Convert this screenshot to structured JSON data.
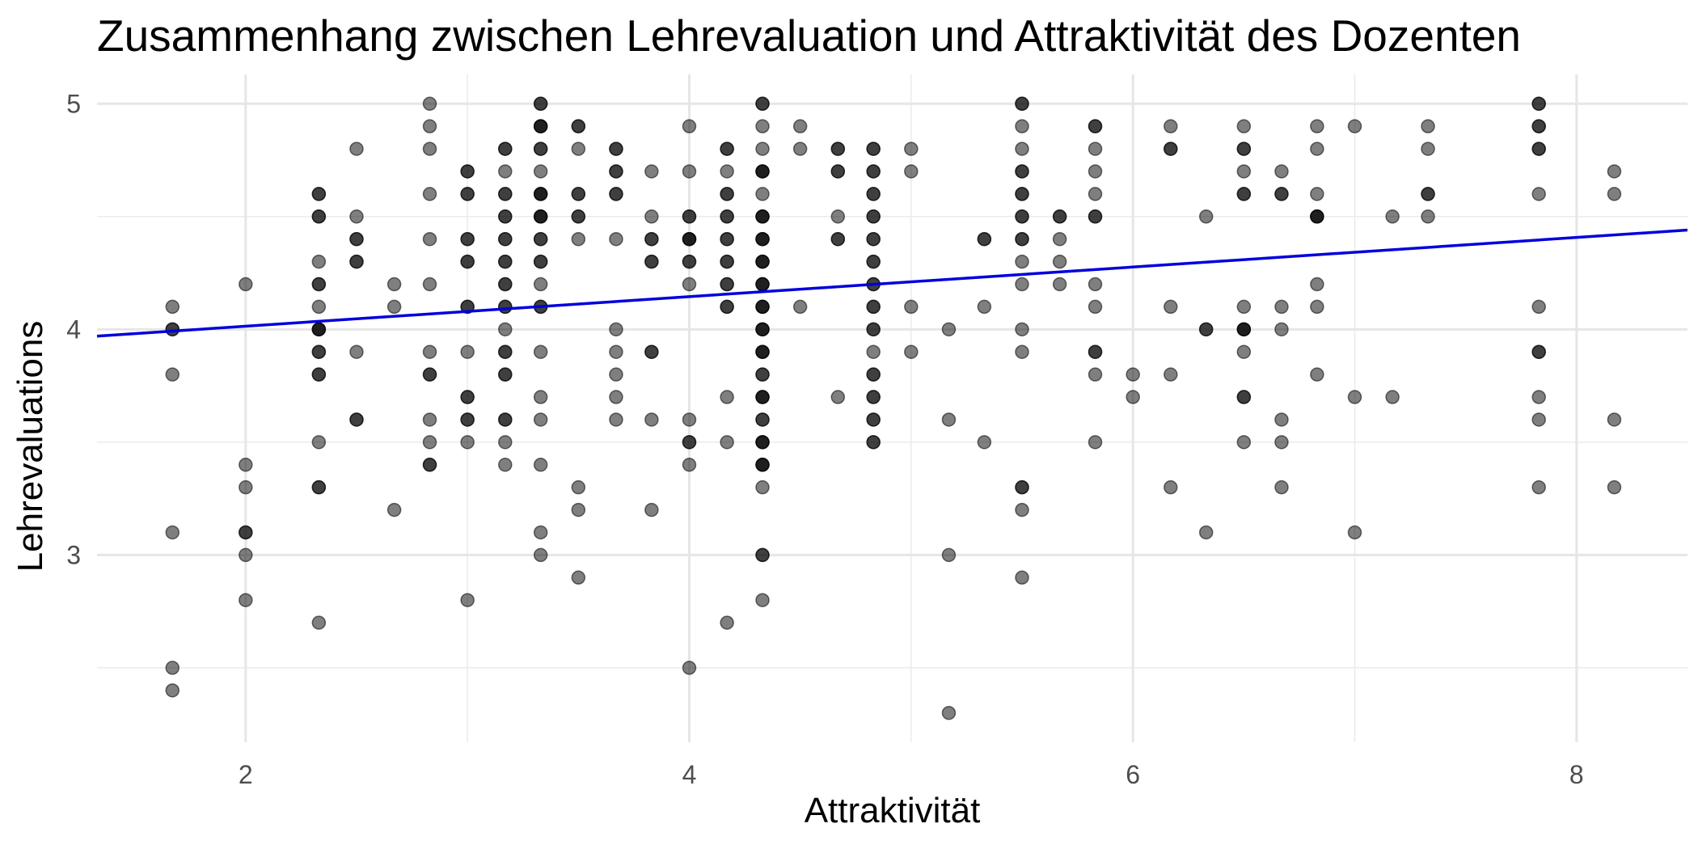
{
  "chart_data": {
    "type": "scatter",
    "title": "Zusammenhang zwischen Lehrevaluation und Attraktivität des Dozenten",
    "xlabel": "Attraktivität",
    "ylabel": "Lehrevaluations",
    "xlim": [
      1.33,
      8.5
    ],
    "ylim": [
      2.17,
      5.13
    ],
    "x_ticks": [
      2,
      4,
      6,
      8
    ],
    "y_ticks": [
      3,
      4,
      5
    ],
    "grid": true,
    "point_color": "#000000",
    "point_opacity": 0.5,
    "line_color": "#0000dd",
    "regression_line": {
      "x": [
        1.33,
        8.5
      ],
      "y": [
        3.97,
        4.44
      ]
    },
    "points": [
      [
        1.67,
        4.1
      ],
      [
        1.67,
        4.0
      ],
      [
        1.67,
        4.0
      ],
      [
        1.67,
        3.8
      ],
      [
        1.67,
        3.1
      ],
      [
        1.67,
        2.5
      ],
      [
        1.67,
        2.4
      ],
      [
        2.0,
        4.2
      ],
      [
        2.0,
        3.4
      ],
      [
        2.0,
        3.3
      ],
      [
        2.0,
        3.1
      ],
      [
        2.0,
        3.1
      ],
      [
        2.0,
        3.0
      ],
      [
        2.0,
        2.8
      ],
      [
        2.33,
        4.6
      ],
      [
        2.33,
        4.6
      ],
      [
        2.33,
        4.5
      ],
      [
        2.33,
        4.5
      ],
      [
        2.33,
        4.3
      ],
      [
        2.33,
        4.2
      ],
      [
        2.33,
        4.2
      ],
      [
        2.33,
        4.1
      ],
      [
        2.33,
        4.0
      ],
      [
        2.33,
        4.0
      ],
      [
        2.33,
        4.0
      ],
      [
        2.33,
        3.9
      ],
      [
        2.33,
        3.9
      ],
      [
        2.33,
        3.8
      ],
      [
        2.33,
        3.8
      ],
      [
        2.33,
        3.5
      ],
      [
        2.33,
        3.3
      ],
      [
        2.33,
        3.3
      ],
      [
        2.33,
        2.7
      ],
      [
        2.5,
        4.8
      ],
      [
        2.5,
        4.5
      ],
      [
        2.5,
        4.4
      ],
      [
        2.5,
        4.4
      ],
      [
        2.5,
        4.3
      ],
      [
        2.5,
        4.3
      ],
      [
        2.5,
        3.9
      ],
      [
        2.5,
        3.6
      ],
      [
        2.5,
        3.6
      ],
      [
        2.67,
        4.2
      ],
      [
        2.67,
        4.1
      ],
      [
        2.67,
        3.2
      ],
      [
        2.83,
        4.9
      ],
      [
        2.83,
        5.0
      ],
      [
        2.83,
        4.8
      ],
      [
        2.83,
        4.6
      ],
      [
        2.83,
        4.4
      ],
      [
        2.83,
        4.2
      ],
      [
        2.83,
        3.9
      ],
      [
        2.83,
        3.8
      ],
      [
        2.83,
        3.8
      ],
      [
        2.83,
        3.6
      ],
      [
        2.83,
        3.5
      ],
      [
        2.83,
        3.4
      ],
      [
        2.83,
        3.4
      ],
      [
        3.0,
        4.7
      ],
      [
        3.0,
        4.7
      ],
      [
        3.0,
        4.6
      ],
      [
        3.0,
        4.6
      ],
      [
        3.0,
        4.4
      ],
      [
        3.0,
        4.4
      ],
      [
        3.0,
        4.3
      ],
      [
        3.0,
        4.3
      ],
      [
        3.0,
        4.1
      ],
      [
        3.0,
        4.1
      ],
      [
        3.0,
        3.9
      ],
      [
        3.0,
        3.7
      ],
      [
        3.0,
        3.7
      ],
      [
        3.0,
        3.6
      ],
      [
        3.0,
        3.6
      ],
      [
        3.0,
        3.5
      ],
      [
        3.0,
        2.8
      ],
      [
        3.17,
        4.8
      ],
      [
        3.17,
        4.8
      ],
      [
        3.17,
        4.7
      ],
      [
        3.17,
        4.6
      ],
      [
        3.17,
        4.6
      ],
      [
        3.17,
        4.5
      ],
      [
        3.17,
        4.5
      ],
      [
        3.17,
        4.4
      ],
      [
        3.17,
        4.4
      ],
      [
        3.17,
        4.3
      ],
      [
        3.17,
        4.3
      ],
      [
        3.17,
        4.2
      ],
      [
        3.17,
        4.2
      ],
      [
        3.17,
        4.1
      ],
      [
        3.17,
        4.1
      ],
      [
        3.17,
        4.0
      ],
      [
        3.17,
        3.9
      ],
      [
        3.17,
        3.9
      ],
      [
        3.17,
        3.8
      ],
      [
        3.17,
        3.8
      ],
      [
        3.17,
        3.6
      ],
      [
        3.17,
        3.6
      ],
      [
        3.17,
        3.5
      ],
      [
        3.17,
        3.4
      ],
      [
        3.33,
        5.0
      ],
      [
        3.33,
        5.0
      ],
      [
        3.33,
        4.9
      ],
      [
        3.33,
        4.9
      ],
      [
        3.33,
        4.9
      ],
      [
        3.33,
        4.8
      ],
      [
        3.33,
        4.8
      ],
      [
        3.33,
        4.7
      ],
      [
        3.33,
        4.6
      ],
      [
        3.33,
        4.6
      ],
      [
        3.33,
        4.6
      ],
      [
        3.33,
        4.5
      ],
      [
        3.33,
        4.5
      ],
      [
        3.33,
        4.5
      ],
      [
        3.33,
        4.4
      ],
      [
        3.33,
        4.4
      ],
      [
        3.33,
        4.3
      ],
      [
        3.33,
        4.3
      ],
      [
        3.33,
        4.2
      ],
      [
        3.33,
        4.1
      ],
      [
        3.33,
        4.1
      ],
      [
        3.33,
        3.9
      ],
      [
        3.33,
        3.7
      ],
      [
        3.33,
        3.6
      ],
      [
        3.33,
        3.4
      ],
      [
        3.33,
        3.1
      ],
      [
        3.33,
        3.0
      ],
      [
        3.5,
        4.9
      ],
      [
        3.5,
        4.9
      ],
      [
        3.5,
        4.8
      ],
      [
        3.5,
        4.6
      ],
      [
        3.5,
        4.6
      ],
      [
        3.5,
        4.5
      ],
      [
        3.5,
        4.5
      ],
      [
        3.5,
        4.4
      ],
      [
        3.5,
        3.3
      ],
      [
        3.5,
        3.2
      ],
      [
        3.5,
        2.9
      ],
      [
        3.67,
        4.8
      ],
      [
        3.67,
        4.8
      ],
      [
        3.67,
        4.7
      ],
      [
        3.67,
        4.7
      ],
      [
        3.67,
        4.6
      ],
      [
        3.67,
        4.6
      ],
      [
        3.67,
        4.4
      ],
      [
        3.67,
        4.0
      ],
      [
        3.67,
        3.9
      ],
      [
        3.67,
        3.8
      ],
      [
        3.67,
        3.7
      ],
      [
        3.67,
        3.6
      ],
      [
        3.83,
        4.7
      ],
      [
        3.83,
        4.5
      ],
      [
        3.83,
        4.4
      ],
      [
        3.83,
        4.4
      ],
      [
        3.83,
        4.3
      ],
      [
        3.83,
        4.3
      ],
      [
        3.83,
        3.9
      ],
      [
        3.83,
        3.9
      ],
      [
        3.83,
        3.6
      ],
      [
        3.83,
        3.2
      ],
      [
        4.0,
        4.9
      ],
      [
        4.0,
        4.7
      ],
      [
        4.0,
        4.5
      ],
      [
        4.0,
        4.5
      ],
      [
        4.0,
        4.4
      ],
      [
        4.0,
        4.4
      ],
      [
        4.0,
        4.4
      ],
      [
        4.0,
        4.3
      ],
      [
        4.0,
        4.3
      ],
      [
        4.0,
        4.2
      ],
      [
        4.0,
        3.6
      ],
      [
        4.0,
        3.5
      ],
      [
        4.0,
        3.5
      ],
      [
        4.0,
        3.4
      ],
      [
        4.0,
        2.5
      ],
      [
        4.17,
        4.8
      ],
      [
        4.17,
        4.8
      ],
      [
        4.17,
        4.7
      ],
      [
        4.17,
        4.6
      ],
      [
        4.17,
        4.6
      ],
      [
        4.17,
        4.5
      ],
      [
        4.17,
        4.5
      ],
      [
        4.17,
        4.4
      ],
      [
        4.17,
        4.4
      ],
      [
        4.17,
        4.3
      ],
      [
        4.17,
        4.3
      ],
      [
        4.17,
        4.2
      ],
      [
        4.17,
        4.2
      ],
      [
        4.17,
        4.1
      ],
      [
        4.17,
        4.1
      ],
      [
        4.17,
        3.7
      ],
      [
        4.17,
        3.5
      ],
      [
        4.17,
        2.7
      ],
      [
        4.33,
        5.0
      ],
      [
        4.33,
        5.0
      ],
      [
        4.33,
        4.9
      ],
      [
        4.33,
        4.8
      ],
      [
        4.33,
        4.7
      ],
      [
        4.33,
        4.7
      ],
      [
        4.33,
        4.7
      ],
      [
        4.33,
        4.6
      ],
      [
        4.33,
        4.5
      ],
      [
        4.33,
        4.5
      ],
      [
        4.33,
        4.5
      ],
      [
        4.33,
        4.4
      ],
      [
        4.33,
        4.4
      ],
      [
        4.33,
        4.4
      ],
      [
        4.33,
        4.3
      ],
      [
        4.33,
        4.3
      ],
      [
        4.33,
        4.3
      ],
      [
        4.33,
        4.2
      ],
      [
        4.33,
        4.2
      ],
      [
        4.33,
        4.2
      ],
      [
        4.33,
        4.1
      ],
      [
        4.33,
        4.1
      ],
      [
        4.33,
        4.1
      ],
      [
        4.33,
        4.0
      ],
      [
        4.33,
        4.0
      ],
      [
        4.33,
        4.0
      ],
      [
        4.33,
        3.9
      ],
      [
        4.33,
        3.9
      ],
      [
        4.33,
        3.9
      ],
      [
        4.33,
        3.8
      ],
      [
        4.33,
        3.8
      ],
      [
        4.33,
        3.7
      ],
      [
        4.33,
        3.7
      ],
      [
        4.33,
        3.7
      ],
      [
        4.33,
        3.6
      ],
      [
        4.33,
        3.6
      ],
      [
        4.33,
        3.5
      ],
      [
        4.33,
        3.5
      ],
      [
        4.33,
        3.5
      ],
      [
        4.33,
        3.4
      ],
      [
        4.33,
        3.4
      ],
      [
        4.33,
        3.4
      ],
      [
        4.33,
        3.3
      ],
      [
        4.33,
        3.0
      ],
      [
        4.33,
        3.0
      ],
      [
        4.33,
        2.8
      ],
      [
        4.5,
        4.9
      ],
      [
        4.5,
        4.8
      ],
      [
        4.5,
        4.1
      ],
      [
        4.67,
        4.8
      ],
      [
        4.67,
        4.8
      ],
      [
        4.67,
        4.7
      ],
      [
        4.67,
        4.7
      ],
      [
        4.67,
        4.5
      ],
      [
        4.67,
        4.4
      ],
      [
        4.67,
        4.4
      ],
      [
        4.67,
        3.7
      ],
      [
        4.83,
        4.8
      ],
      [
        4.83,
        4.8
      ],
      [
        4.83,
        4.7
      ],
      [
        4.83,
        4.7
      ],
      [
        4.83,
        4.6
      ],
      [
        4.83,
        4.6
      ],
      [
        4.83,
        4.5
      ],
      [
        4.83,
        4.5
      ],
      [
        4.83,
        4.4
      ],
      [
        4.83,
        4.4
      ],
      [
        4.83,
        4.3
      ],
      [
        4.83,
        4.3
      ],
      [
        4.83,
        4.2
      ],
      [
        4.83,
        4.2
      ],
      [
        4.83,
        4.1
      ],
      [
        4.83,
        4.1
      ],
      [
        4.83,
        4.0
      ],
      [
        4.83,
        4.0
      ],
      [
        4.83,
        3.9
      ],
      [
        4.83,
        3.8
      ],
      [
        4.83,
        3.8
      ],
      [
        4.83,
        3.7
      ],
      [
        4.83,
        3.7
      ],
      [
        4.83,
        3.6
      ],
      [
        4.83,
        3.6
      ],
      [
        4.83,
        3.5
      ],
      [
        4.83,
        3.5
      ],
      [
        5.0,
        4.8
      ],
      [
        5.0,
        4.7
      ],
      [
        5.0,
        4.1
      ],
      [
        5.0,
        3.9
      ],
      [
        5.17,
        4.0
      ],
      [
        5.17,
        3.6
      ],
      [
        5.17,
        3.0
      ],
      [
        5.17,
        2.3
      ],
      [
        5.33,
        4.4
      ],
      [
        5.33,
        4.4
      ],
      [
        5.33,
        4.1
      ],
      [
        5.33,
        3.5
      ],
      [
        5.5,
        5.0
      ],
      [
        5.5,
        5.0
      ],
      [
        5.5,
        4.9
      ],
      [
        5.5,
        4.8
      ],
      [
        5.5,
        4.7
      ],
      [
        5.5,
        4.7
      ],
      [
        5.5,
        4.6
      ],
      [
        5.5,
        4.6
      ],
      [
        5.5,
        4.5
      ],
      [
        5.5,
        4.5
      ],
      [
        5.5,
        4.4
      ],
      [
        5.5,
        4.4
      ],
      [
        5.5,
        4.3
      ],
      [
        5.5,
        4.2
      ],
      [
        5.5,
        4.0
      ],
      [
        5.5,
        3.9
      ],
      [
        5.5,
        3.3
      ],
      [
        5.5,
        3.3
      ],
      [
        5.5,
        3.2
      ],
      [
        5.5,
        2.9
      ],
      [
        5.67,
        4.5
      ],
      [
        5.67,
        4.5
      ],
      [
        5.67,
        4.4
      ],
      [
        5.67,
        4.3
      ],
      [
        5.67,
        4.2
      ],
      [
        5.83,
        4.9
      ],
      [
        5.83,
        4.9
      ],
      [
        5.83,
        4.8
      ],
      [
        5.83,
        4.7
      ],
      [
        5.83,
        4.6
      ],
      [
        5.83,
        4.5
      ],
      [
        5.83,
        4.5
      ],
      [
        5.83,
        4.2
      ],
      [
        5.83,
        4.1
      ],
      [
        5.83,
        3.9
      ],
      [
        5.83,
        3.9
      ],
      [
        5.83,
        3.8
      ],
      [
        5.83,
        3.5
      ],
      [
        6.0,
        3.8
      ],
      [
        6.0,
        3.7
      ],
      [
        6.17,
        4.9
      ],
      [
        6.17,
        4.8
      ],
      [
        6.17,
        4.8
      ],
      [
        6.17,
        4.1
      ],
      [
        6.17,
        3.8
      ],
      [
        6.17,
        3.3
      ],
      [
        6.33,
        4.5
      ],
      [
        6.33,
        4.0
      ],
      [
        6.33,
        4.0
      ],
      [
        6.33,
        3.1
      ],
      [
        6.5,
        4.9
      ],
      [
        6.5,
        4.8
      ],
      [
        6.5,
        4.8
      ],
      [
        6.5,
        4.7
      ],
      [
        6.5,
        4.6
      ],
      [
        6.5,
        4.6
      ],
      [
        6.5,
        4.1
      ],
      [
        6.5,
        4.0
      ],
      [
        6.5,
        4.0
      ],
      [
        6.5,
        4.0
      ],
      [
        6.5,
        3.9
      ],
      [
        6.5,
        3.7
      ],
      [
        6.5,
        3.7
      ],
      [
        6.5,
        3.5
      ],
      [
        6.67,
        4.7
      ],
      [
        6.67,
        4.6
      ],
      [
        6.67,
        4.6
      ],
      [
        6.67,
        4.1
      ],
      [
        6.67,
        4.0
      ],
      [
        6.67,
        3.6
      ],
      [
        6.67,
        3.5
      ],
      [
        6.67,
        3.3
      ],
      [
        6.83,
        4.9
      ],
      [
        6.83,
        4.8
      ],
      [
        6.83,
        4.6
      ],
      [
        6.83,
        4.5
      ],
      [
        6.83,
        4.5
      ],
      [
        6.83,
        4.5
      ],
      [
        6.83,
        4.2
      ],
      [
        6.83,
        4.1
      ],
      [
        6.83,
        3.8
      ],
      [
        7.0,
        4.9
      ],
      [
        7.0,
        3.7
      ],
      [
        7.0,
        3.1
      ],
      [
        7.17,
        4.5
      ],
      [
        7.17,
        3.7
      ],
      [
        7.33,
        4.9
      ],
      [
        7.33,
        4.8
      ],
      [
        7.33,
        4.6
      ],
      [
        7.33,
        4.6
      ],
      [
        7.33,
        4.5
      ],
      [
        7.83,
        5.0
      ],
      [
        7.83,
        5.0
      ],
      [
        7.83,
        4.9
      ],
      [
        7.83,
        4.9
      ],
      [
        7.83,
        4.8
      ],
      [
        7.83,
        4.8
      ],
      [
        7.83,
        4.6
      ],
      [
        7.83,
        4.1
      ],
      [
        7.83,
        3.9
      ],
      [
        7.83,
        3.9
      ],
      [
        7.83,
        3.7
      ],
      [
        7.83,
        3.6
      ],
      [
        7.83,
        3.3
      ],
      [
        8.17,
        4.7
      ],
      [
        8.17,
        4.6
      ],
      [
        8.17,
        3.6
      ],
      [
        8.17,
        3.3
      ]
    ]
  }
}
